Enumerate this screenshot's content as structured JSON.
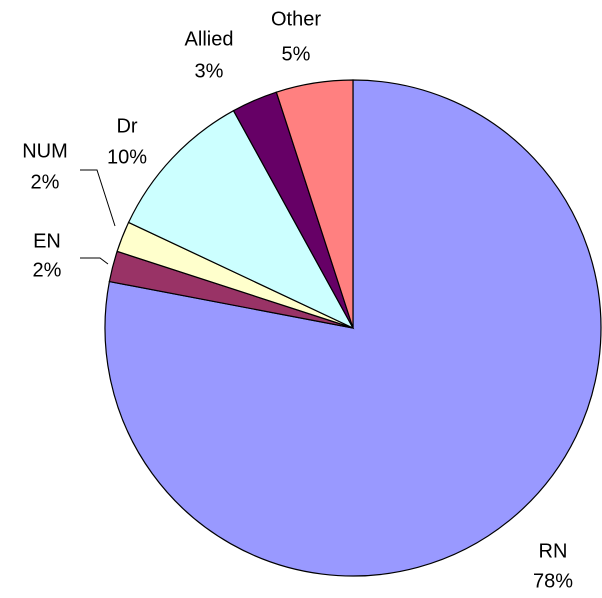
{
  "chart_data": {
    "type": "pie",
    "categories": [
      "RN",
      "EN",
      "NUM",
      "Dr",
      "Allied",
      "Other"
    ],
    "values": [
      78,
      2,
      2,
      10,
      3,
      5
    ],
    "value_labels": [
      "78%",
      "2%",
      "2%",
      "10%",
      "3%",
      "5%"
    ],
    "colors": [
      "#9999ff",
      "#993366",
      "#ffffcc",
      "#ccffff",
      "#660066",
      "#ff8080"
    ]
  }
}
